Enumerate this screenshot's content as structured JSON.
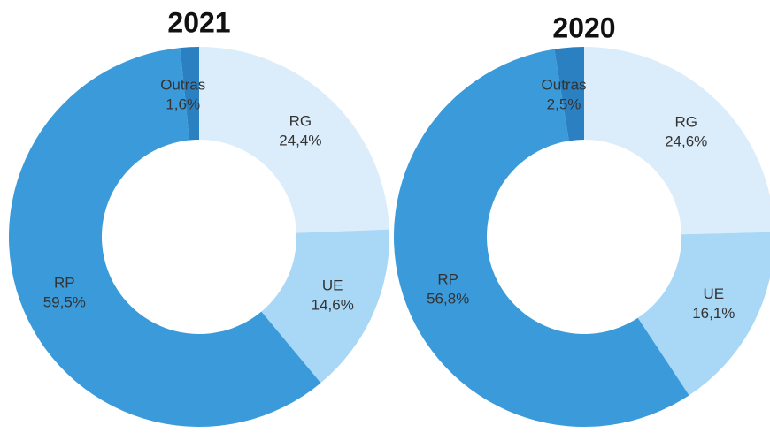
{
  "chart_data": [
    {
      "type": "donut",
      "title": "2021",
      "categories": [
        "RG",
        "UE",
        "RP",
        "Outras"
      ],
      "values": [
        24.4,
        14.6,
        59.5,
        1.6
      ],
      "value_labels": [
        "24,4%",
        "14,6%",
        "59,5%",
        "1,6%"
      ],
      "colors": [
        "#dbedfa",
        "#a9d8f6",
        "#3b9bda",
        "#2b80c2"
      ]
    },
    {
      "type": "donut",
      "title": "2020",
      "categories": [
        "RG",
        "UE",
        "RP",
        "Outras"
      ],
      "values": [
        24.6,
        16.1,
        56.8,
        2.5
      ],
      "value_labels": [
        "24,6%",
        "16,1%",
        "56,8%",
        "2,5%"
      ],
      "colors": [
        "#dbedfa",
        "#a9d8f6",
        "#3b9bda",
        "#2b80c2"
      ]
    }
  ]
}
